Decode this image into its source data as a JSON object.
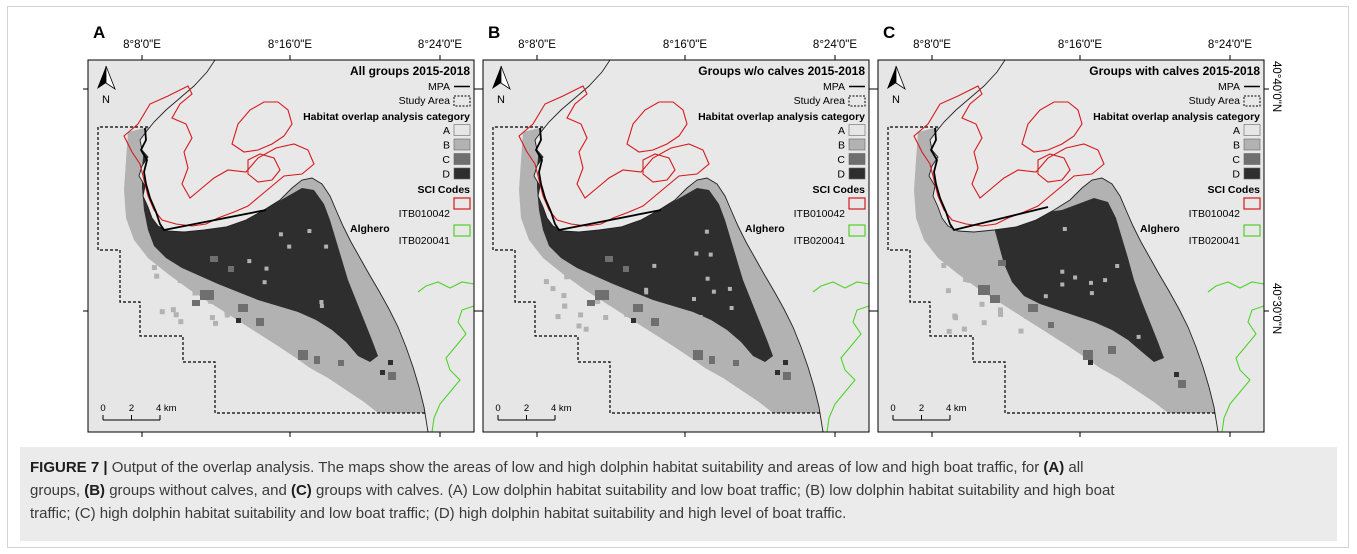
{
  "figure": {
    "panels": [
      {
        "letter": "A",
        "legend_title": "All groups 2015-2018"
      },
      {
        "letter": "B",
        "legend_title": "Groups w/o calves 2015-2018"
      },
      {
        "letter": "C",
        "legend_title": "Groups with calves 2015-2018"
      }
    ],
    "longitude_labels": [
      "8°8'0\"E",
      "8°16'0\"E",
      "8°24'0\"E"
    ],
    "latitude_labels": [
      "40°40'0\"N",
      "40°30'0\"N"
    ],
    "north_arrow_label": "N",
    "place_label": "Alghero",
    "scale_bar_labels": [
      "0",
      "2",
      "4 km"
    ],
    "legend": {
      "mpa_label": "MPA",
      "mpa_color": "#000000",
      "study_area_label": "Study Area",
      "habitat_title": "Habitat overlap analysis category",
      "categories": [
        {
          "label": "A",
          "color": "#e6e6e6"
        },
        {
          "label": "B",
          "color": "#b2b2b2"
        },
        {
          "label": "C",
          "color": "#6f6f6f"
        },
        {
          "label": "D",
          "color": "#2e2e2e"
        }
      ],
      "sci_title": "SCI Codes",
      "sci_codes": [
        {
          "label": "ITB010042",
          "color": "#d7191c"
        },
        {
          "label": "ITB020041",
          "color": "#4fd22a"
        }
      ]
    }
  },
  "caption": {
    "lines": [
      [
        "FIGURE 7 |",
        " Output of the overlap analysis. The maps show the areas of low and high dolphin habitat suitability and areas of low and high boat traffic, for ",
        "(A)",
        " all"
      ],
      [
        "groups, ",
        "(B)",
        " groups without calves, and ",
        "(C)",
        " groups with calves. (A) Low dolphin habitat suitability and low boat traffic; (B) low dolphin habitat suitability and high boat"
      ],
      [
        "traffic; (C) high dolphin habitat suitability and low boat traffic; (D) high dolphin habitat suitability and high level of boat traffic."
      ]
    ]
  }
}
